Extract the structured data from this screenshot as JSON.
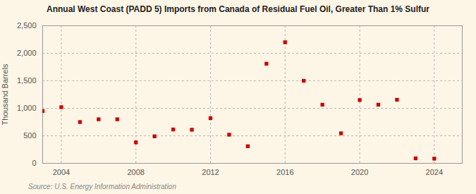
{
  "chart_data": {
    "type": "scatter",
    "title": "Annual West Coast (PADD 5) Imports from Canada of Residual Fuel Oil, Greater Than 1% Sulfur",
    "ylabel": "Thousand Barrels",
    "caption": "Source: U.S. Energy Information Administration",
    "x": [
      2003,
      2004,
      2005,
      2006,
      2007,
      2008,
      2009,
      2010,
      2011,
      2012,
      2013,
      2014,
      2015,
      2016,
      2017,
      2018,
      2019,
      2020,
      2021,
      2022,
      2023,
      2024
    ],
    "values": [
      950,
      1020,
      750,
      800,
      800,
      380,
      490,
      615,
      610,
      820,
      520,
      310,
      1810,
      2200,
      1500,
      1065,
      545,
      1150,
      1065,
      1155,
      90,
      85
    ],
    "color": "#cc0000",
    "marker": "square",
    "xlim": [
      2003,
      2025.5
    ],
    "xticks": [
      2004,
      2008,
      2012,
      2016,
      2020,
      2024
    ],
    "ylim": [
      0,
      2500
    ],
    "yticks": [
      0,
      500,
      {
        "value": 1000,
        "label": "1,000"
      },
      {
        "value": 1500,
        "label": "1,500"
      },
      {
        "value": 2000,
        "label": "2,000"
      },
      {
        "value": 2500,
        "label": "2,500"
      }
    ],
    "grid": true
  }
}
